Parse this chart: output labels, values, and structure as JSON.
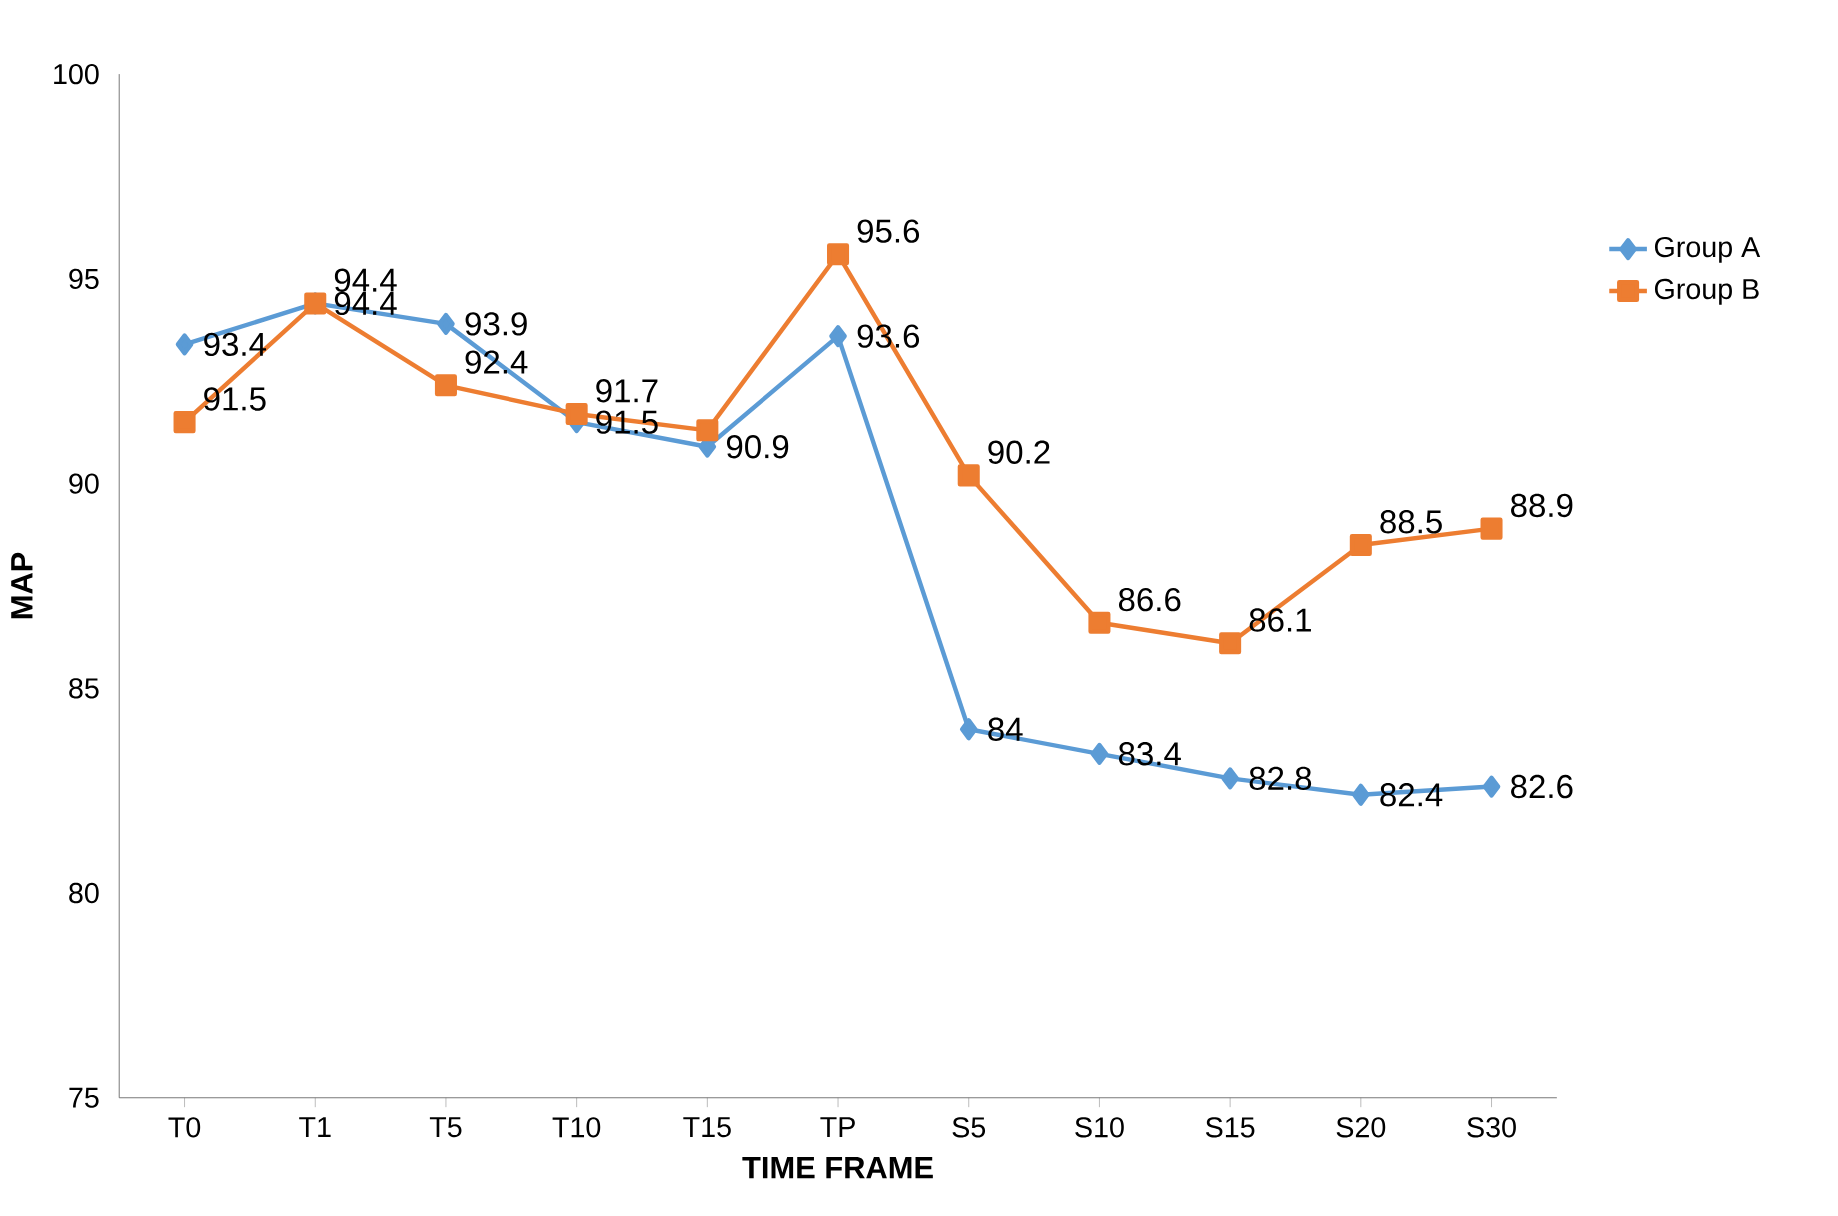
{
  "chart_data": {
    "type": "line",
    "xlabel": "TIME FRAME",
    "ylabel": "MAP",
    "categories": [
      "T0",
      "T1",
      "T5",
      "T10",
      "T15",
      "TP",
      "S5",
      "S10",
      "S15",
      "S20",
      "S30"
    ],
    "series": [
      {
        "name": "Group A",
        "color": "#5b9bd5",
        "marker": "diamond",
        "values": [
          93.4,
          94.4,
          93.9,
          91.5,
          90.9,
          93.6,
          84,
          83.4,
          82.8,
          82.4,
          82.6
        ],
        "value_labels": [
          "93.4",
          "94.4",
          "93.9",
          "91.5",
          "90.9",
          "93.6",
          "84",
          "83.4",
          "82.8",
          "82.4",
          "82.6"
        ]
      },
      {
        "name": "Group B",
        "color": "#ed7d31",
        "marker": "square",
        "values": [
          91.5,
          94.4,
          92.4,
          91.7,
          91.3,
          95.6,
          90.2,
          86.6,
          86.1,
          88.5,
          88.9
        ],
        "value_labels": [
          "91.5",
          "94.4",
          "92.4",
          "91.7",
          null,
          "95.6",
          "90.2",
          "86.6",
          "86.1",
          "88.5",
          "88.9"
        ]
      }
    ],
    "ylim": [
      75,
      100
    ],
    "yticks": [
      75,
      80,
      85,
      90,
      95,
      100
    ],
    "grid": false,
    "legend": "right",
    "line_style": "solid"
  }
}
